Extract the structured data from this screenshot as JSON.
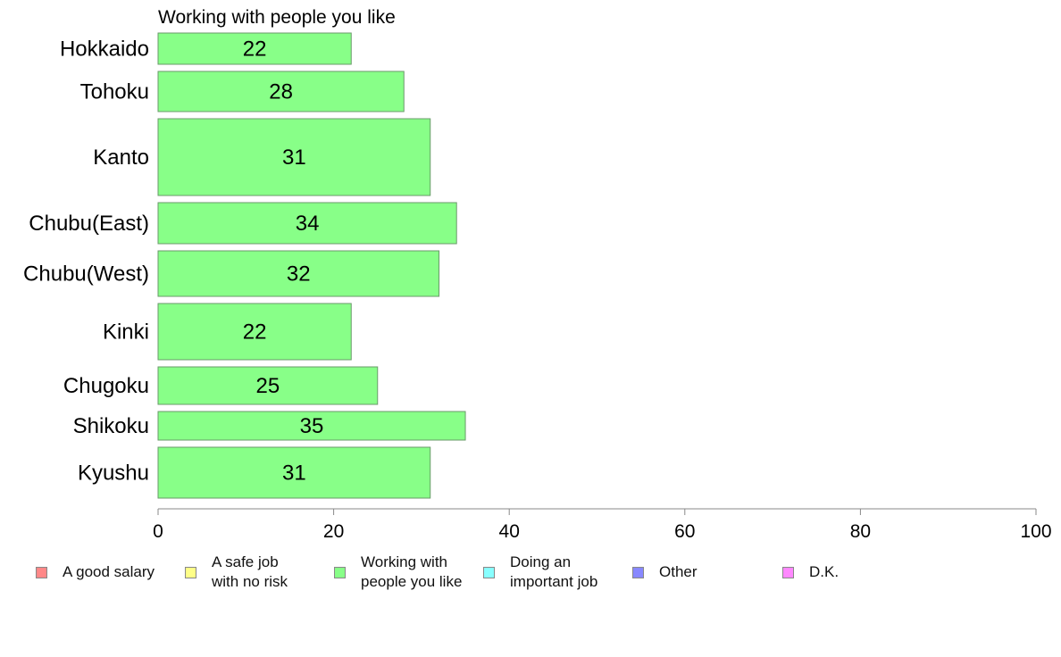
{
  "chart_data": {
    "type": "bar",
    "orientation": "horizontal",
    "title": "Working with people you like",
    "categories": [
      "Hokkaido",
      "Tohoku",
      "Kanto",
      "Chubu(East)",
      "Chubu(West)",
      "Kinki",
      "Chugoku",
      "Shikoku",
      "Kyushu"
    ],
    "values": [
      22,
      28,
      31,
      34,
      32,
      22,
      25,
      35,
      31
    ],
    "data_labels": [
      "22",
      "28",
      "31",
      "34",
      "32",
      "22",
      "25",
      "35",
      "31"
    ],
    "xlim": [
      0,
      100
    ],
    "xticks": [
      0,
      20,
      40,
      60,
      80,
      100
    ],
    "xtick_labels": [
      "0",
      "20",
      "40",
      "60",
      "80",
      "100"
    ],
    "bar_color": "#88ff88",
    "grid": false,
    "legend_position": "bottom",
    "legend": [
      {
        "label": "A good salary",
        "color": "#ff8888"
      },
      {
        "label": "A safe job\nwith no risk",
        "color": "#ffff88"
      },
      {
        "label": "Working with\npeople you like",
        "color": "#88ff88"
      },
      {
        "label": "Doing an\nimportant job",
        "color": "#88ffff"
      },
      {
        "label": "Other",
        "color": "#8888ff"
      },
      {
        "label": "D.K.",
        "color": "#ff88ff"
      }
    ]
  }
}
